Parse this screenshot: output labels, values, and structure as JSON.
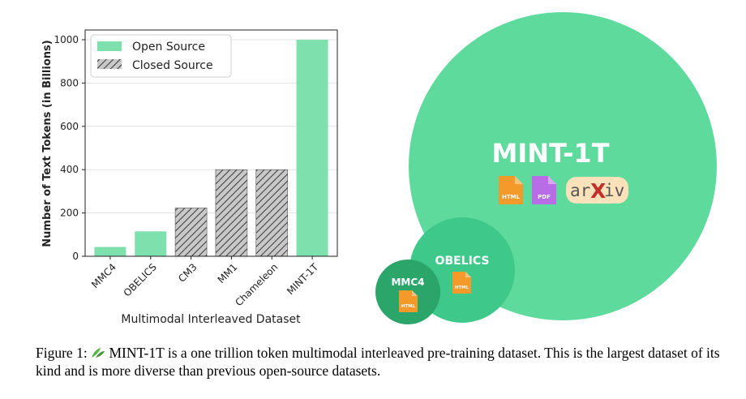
{
  "chart_data": {
    "type": "bar",
    "xlabel": "Multimodal Interleaved Dataset",
    "ylabel": "Number of Text Tokens (in Billions)",
    "ylim": [
      0,
      1000
    ],
    "yticks": [
      0,
      200,
      400,
      600,
      800,
      1000
    ],
    "categories": [
      "MMC4",
      "OBELICS",
      "CM3",
      "MM1",
      "Chameleon",
      "MINT-1T"
    ],
    "values": [
      43,
      115,
      223,
      400,
      400,
      1000
    ],
    "source_type": [
      "open",
      "open",
      "closed",
      "closed",
      "closed",
      "open"
    ],
    "legend": {
      "position": "top-left",
      "entries": [
        {
          "label": "Open Source",
          "key": "open"
        },
        {
          "label": "Closed Source",
          "key": "closed"
        }
      ]
    },
    "grid": "horizontal",
    "colors": {
      "open": "#7ee0ad",
      "closed": "#c8c8c8",
      "hatch": "#3a3a3a"
    }
  },
  "bubbles": [
    {
      "label": "MINT-1T",
      "color": "#5dda9c",
      "icons": [
        "HTML",
        "PDF",
        "arXiv"
      ]
    },
    {
      "label": "OBELICS",
      "color": "#3ec98a",
      "icons": [
        "HTML"
      ]
    },
    {
      "label": "MMC4",
      "color": "#2ca56a",
      "icons": [
        "HTML"
      ]
    }
  ],
  "icon_labels": {
    "html": "HTML",
    "pdf": "PDF",
    "arxiv_left": "ar",
    "arxiv_right": "iv",
    "arxiv_x": "X"
  },
  "caption": {
    "prefix": "Figure 1:",
    "text": " MINT-1T is a one trillion token multimodal interleaved pre-training dataset. This is the largest dataset of its kind and is more diverse than previous open-source datasets."
  }
}
